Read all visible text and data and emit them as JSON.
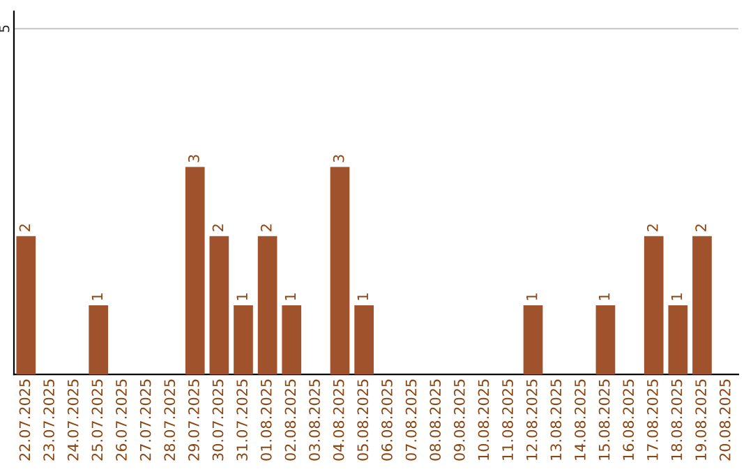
{
  "chart_data": {
    "type": "bar",
    "categories": [
      "22.07.2025",
      "23.07.2025",
      "24.07.2025",
      "25.07.2025",
      "26.07.2025",
      "27.07.2025",
      "28.07.2025",
      "29.07.2025",
      "30.07.2025",
      "31.07.2025",
      "01.08.2025",
      "02.08.2025",
      "03.08.2025",
      "04.08.2025",
      "05.08.2025",
      "06.08.2025",
      "07.08.2025",
      "08.08.2025",
      "09.08.2025",
      "10.08.2025",
      "11.08.2025",
      "12.08.2025",
      "13.08.2025",
      "14.08.2025",
      "15.08.2025",
      "16.08.2025",
      "17.08.2025",
      "18.08.2025",
      "19.08.2025",
      "20.08.2025"
    ],
    "values": [
      2,
      0,
      0,
      1,
      0,
      0,
      0,
      3,
      2,
      1,
      2,
      1,
      0,
      3,
      1,
      0,
      0,
      0,
      0,
      0,
      0,
      1,
      0,
      0,
      1,
      0,
      2,
      1,
      2,
      0
    ],
    "value_labels": [
      "2",
      null,
      null,
      "1",
      null,
      null,
      null,
      "3",
      "2",
      "1",
      "2",
      "1",
      null,
      "3",
      "1",
      null,
      null,
      null,
      null,
      null,
      null,
      "1",
      null,
      null,
      "1",
      null,
      "2",
      "1",
      "2",
      null
    ],
    "color": "#a0522d",
    "ylim": [
      0,
      5.25
    ],
    "yticks": [
      5
    ],
    "grid": "y",
    "legend": false
  }
}
